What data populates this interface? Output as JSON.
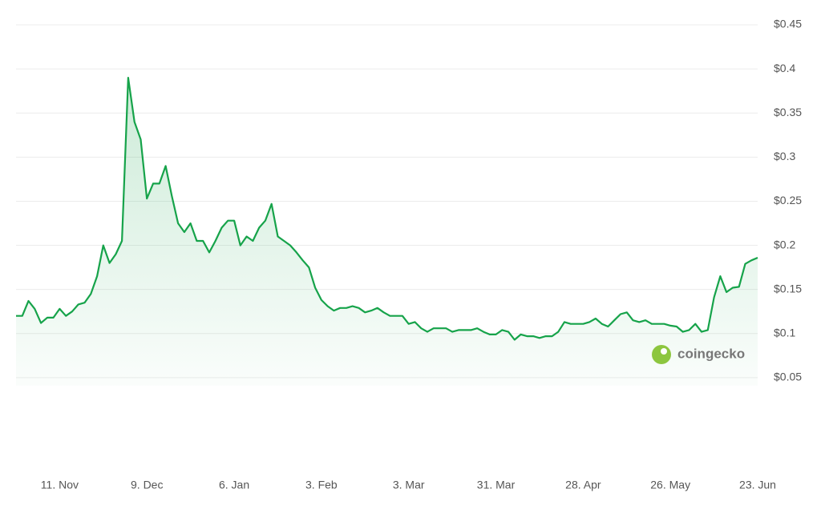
{
  "chart_data": {
    "type": "line",
    "watermark": "coingecko",
    "color": "#16a34a",
    "grid": true,
    "ylim": [
      0,
      0.45
    ],
    "yticks": [
      {
        "value": 0.05,
        "label": "$0.05"
      },
      {
        "value": 0.1,
        "label": "$0.1"
      },
      {
        "value": 0.15,
        "label": "$0.15"
      },
      {
        "value": 0.2,
        "label": "$0.2"
      },
      {
        "value": 0.25,
        "label": "$0.25"
      },
      {
        "value": 0.3,
        "label": "$0.3"
      },
      {
        "value": 0.35,
        "label": "$0.35"
      },
      {
        "value": 0.4,
        "label": "$0.4"
      },
      {
        "value": 0.45,
        "label": "$0.45"
      }
    ],
    "categories": [
      null,
      null,
      null,
      null,
      null,
      null,
      null,
      "11. Nov",
      null,
      null,
      null,
      null,
      null,
      null,
      null,
      null,
      null,
      null,
      null,
      null,
      null,
      "9. Dec",
      null,
      null,
      null,
      null,
      null,
      null,
      null,
      null,
      null,
      null,
      null,
      null,
      null,
      "6. Jan",
      null,
      null,
      null,
      null,
      null,
      null,
      null,
      null,
      null,
      null,
      null,
      null,
      null,
      "3. Feb",
      null,
      null,
      null,
      null,
      null,
      null,
      null,
      null,
      null,
      null,
      null,
      null,
      null,
      "3. Mar",
      null,
      null,
      null,
      null,
      null,
      null,
      null,
      null,
      null,
      null,
      null,
      null,
      null,
      "31. Mar",
      null,
      null,
      null,
      null,
      null,
      null,
      null,
      null,
      null,
      null,
      null,
      null,
      null,
      "28. Apr",
      null,
      null,
      null,
      null,
      null,
      null,
      null,
      null,
      null,
      null,
      null,
      null,
      null,
      "26. May",
      null,
      null,
      null,
      null,
      null,
      null,
      null,
      null,
      null,
      null,
      null,
      null,
      null,
      "23. Jun"
    ],
    "values": [
      0.12,
      0.12,
      0.137,
      0.128,
      0.112,
      0.118,
      0.118,
      0.128,
      0.12,
      0.125,
      0.133,
      0.135,
      0.145,
      0.165,
      0.2,
      0.18,
      0.19,
      0.205,
      0.39,
      0.34,
      0.32,
      0.253,
      0.27,
      0.27,
      0.29,
      0.256,
      0.225,
      0.215,
      0.225,
      0.205,
      0.205,
      0.192,
      0.205,
      0.22,
      0.228,
      0.228,
      0.2,
      0.21,
      0.205,
      0.22,
      0.228,
      0.247,
      0.21,
      0.205,
      0.2,
      0.192,
      0.183,
      0.175,
      0.152,
      0.138,
      0.131,
      0.126,
      0.129,
      0.129,
      0.131,
      0.129,
      0.124,
      0.126,
      0.129,
      0.124,
      0.12,
      0.12,
      0.12,
      0.111,
      0.113,
      0.106,
      0.102,
      0.106,
      0.106,
      0.106,
      0.102,
      0.104,
      0.104,
      0.104,
      0.106,
      0.102,
      0.099,
      0.099,
      0.104,
      0.102,
      0.093,
      0.099,
      0.097,
      0.097,
      0.095,
      0.097,
      0.097,
      0.102,
      0.113,
      0.111,
      0.111,
      0.111,
      0.113,
      0.117,
      0.111,
      0.108,
      0.115,
      0.122,
      0.124,
      0.115,
      0.113,
      0.115,
      0.111,
      0.111,
      0.111,
      0.109,
      0.108,
      0.102,
      0.104,
      0.111,
      0.102,
      0.104,
      0.141,
      0.165,
      0.147,
      0.152,
      0.153,
      0.179,
      0.183,
      0.186
    ]
  }
}
